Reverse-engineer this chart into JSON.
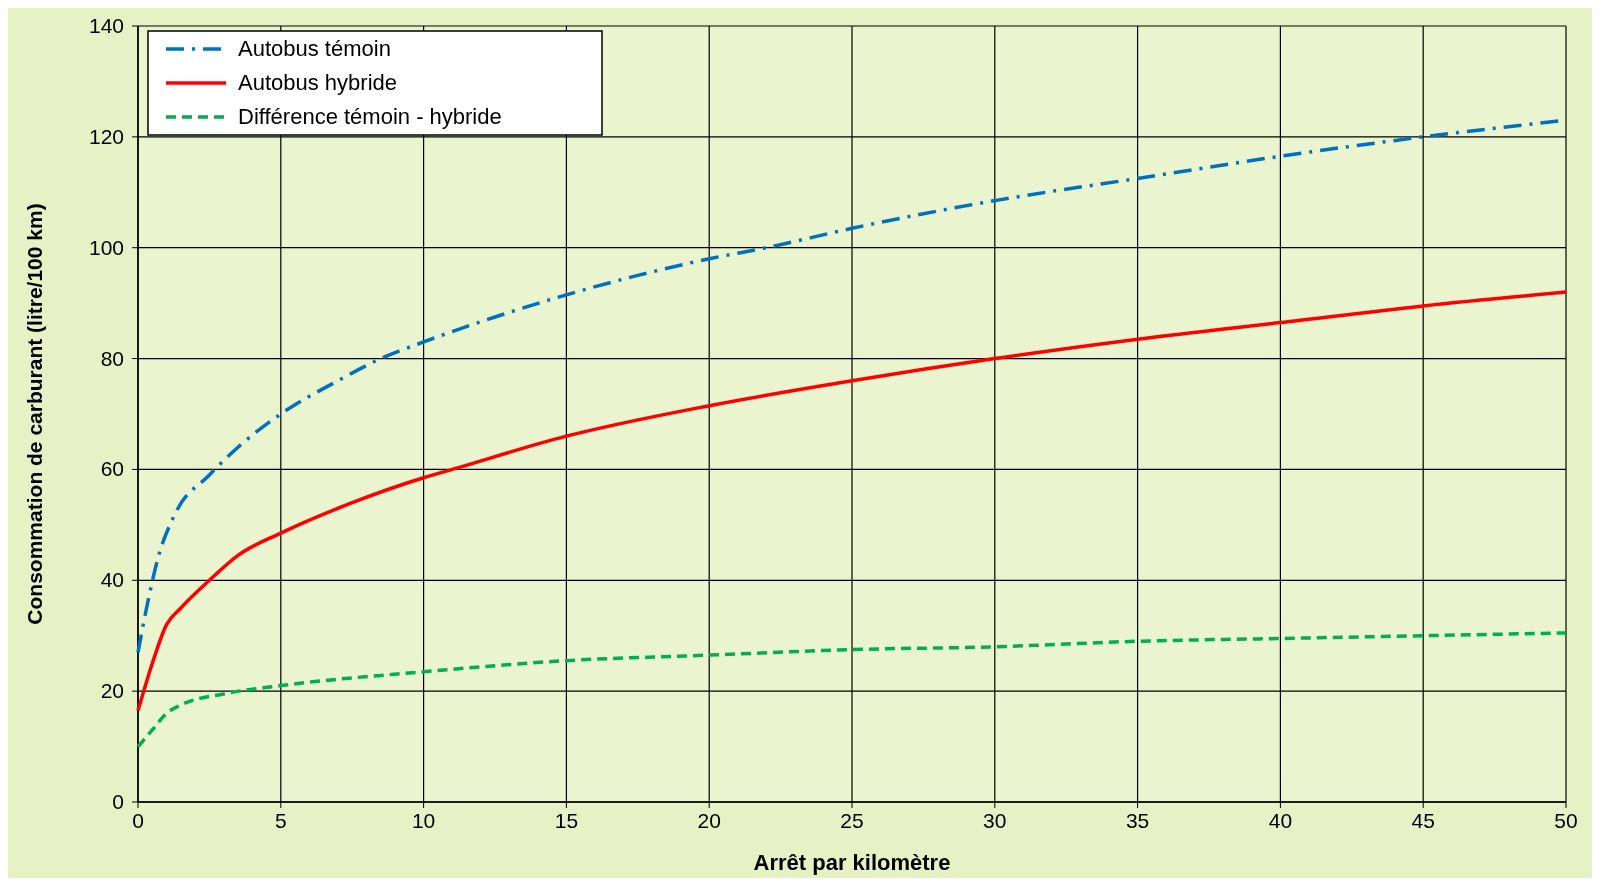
{
  "chart_data": {
    "type": "line",
    "xlabel": "Arrêt par kilomètre",
    "ylabel": "Consommation de carburant (litre/100 km)",
    "xlim": [
      0,
      50
    ],
    "ylim": [
      0,
      140
    ],
    "xticks": [
      0,
      5,
      10,
      15,
      20,
      25,
      30,
      35,
      40,
      45,
      50
    ],
    "yticks": [
      0,
      20,
      40,
      60,
      80,
      100,
      120,
      140
    ],
    "grid": true,
    "legend": "top left",
    "series": [
      {
        "name": "Autobus témoin",
        "color": "#0070c0",
        "line_style": "dashdot",
        "x": [
          0,
          0.3,
          0.7,
          1.3,
          2.5,
          3.5,
          5,
          7,
          8.5,
          10,
          12.5,
          15,
          17.5,
          20,
          22,
          25,
          30,
          35,
          40,
          45,
          50
        ],
        "values": [
          27,
          35,
          44,
          52,
          59,
          64,
          70,
          76,
          80,
          83,
          87.5,
          91.5,
          95,
          98,
          100,
          103.5,
          108.5,
          112.5,
          116.5,
          120,
          123
        ]
      },
      {
        "name": "Autobus hybride",
        "color": "#ff0000",
        "line_style": "solid",
        "x": [
          0,
          0.5,
          1,
          1.5,
          2.5,
          3.5,
          5,
          7.5,
          10,
          11,
          15,
          20,
          25,
          30,
          35,
          40,
          45,
          50
        ],
        "values": [
          16.5,
          25,
          32,
          35,
          40,
          44.5,
          48.5,
          54,
          58.5,
          60,
          66,
          71.5,
          76,
          80,
          83.5,
          86.5,
          89.5,
          92
        ]
      },
      {
        "name": "Différence témoin - hybride",
        "color": "#00b050",
        "line_style": "dashed",
        "x": [
          0,
          0.5,
          1,
          1.5,
          3,
          5,
          10,
          15,
          20,
          25,
          30,
          35,
          40,
          45,
          50
        ],
        "values": [
          10,
          13,
          16,
          17.5,
          19.5,
          21,
          23.5,
          25.5,
          26.5,
          27.5,
          28,
          29,
          29.5,
          30,
          30.5
        ]
      }
    ]
  }
}
